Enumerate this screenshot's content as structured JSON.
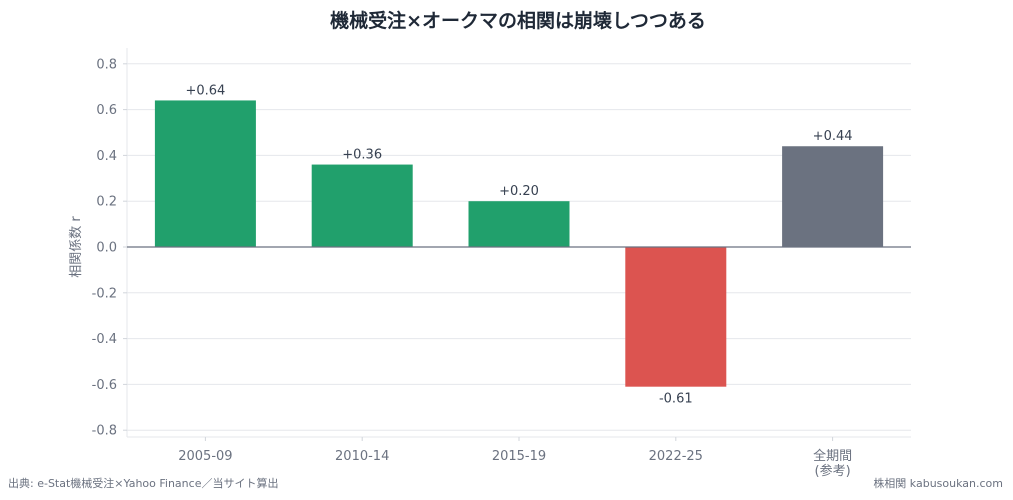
{
  "chart_data": {
    "type": "bar",
    "title": "機械受注×オークマの相関は崩壊しつつある",
    "ylabel": "相関係数 r",
    "xlabel": "",
    "categories": [
      "2005-09",
      "2010-14",
      "2015-19",
      "2022-25",
      "全期間\n(参考)"
    ],
    "values": [
      0.64,
      0.36,
      0.2,
      -0.61,
      0.44
    ],
    "value_labels": [
      "+0.64",
      "+0.36",
      "+0.20",
      "-0.61",
      "+0.44"
    ],
    "bar_colors": [
      "#21a06c",
      "#21a06c",
      "#21a06c",
      "#dc5450",
      "#6b7280"
    ],
    "ylim": [
      -0.85,
      0.87
    ],
    "yticks": [
      0.8,
      0.6,
      0.4,
      0.2,
      0.0,
      -0.2,
      -0.4,
      -0.6,
      -0.8
    ],
    "ytick_labels": [
      "0.8",
      "0.6",
      "0.4",
      "0.2",
      "0.0",
      "-0.2",
      "-0.4",
      "-0.6",
      "-0.8"
    ],
    "grid": true,
    "legend": "none"
  },
  "footer": {
    "source": "出典: e-Stat機械受注×Yahoo Finance／当サイト算出",
    "credit": "株相関 kabusoukan.com"
  }
}
